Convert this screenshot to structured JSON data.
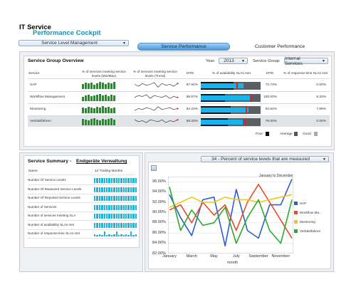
{
  "header": {
    "title_line1": "IT Service",
    "title_line2": "Performance Cockpit"
  },
  "nav_combo": {
    "value": "Service Level Management"
  },
  "tabs": [
    {
      "label": "Service Performance",
      "active": true
    },
    {
      "label": "Customer Performance",
      "active": false
    }
  ],
  "overview": {
    "title": "Service Group Overview",
    "year_label": "Year:",
    "year_value": "2013",
    "group_label": "Service Group:",
    "group_value": "Internal Services",
    "headers": {
      "service": "Service",
      "pct_min_max": "% of services meeting service levels (Min/Max)",
      "pct_trend": "% of services meeting service levels (Trend)",
      "mtd1": "MTD",
      "avail": "% of availability SLAs met",
      "mtd2": "MTD",
      "resp": "% of response-time SLAs met"
    },
    "rows": [
      {
        "name": "SAP",
        "mtd": "87.94%",
        "avail_mtd": "72.73%",
        "resp": "0.00%",
        "fill": 0.72,
        "band": 0.55,
        "mark": 0.6,
        "bars": [
          7,
          9,
          8,
          9,
          6,
          8,
          10,
          9,
          7,
          9,
          8,
          10
        ],
        "trend": [
          5,
          3,
          6,
          4,
          5,
          7,
          2,
          6,
          4,
          5,
          3,
          6
        ]
      },
      {
        "name": "Workflow Management",
        "mtd": "86.67%",
        "avail_mtd": "100.00%",
        "resp": "8.33%",
        "fill": 0.85,
        "band": 0.4,
        "mark": 0.82,
        "bars": [
          6,
          8,
          9,
          7,
          8,
          9,
          10,
          8,
          9,
          7,
          9,
          8
        ],
        "trend": [
          4,
          6,
          5,
          7,
          3,
          6,
          5,
          4,
          6,
          3,
          5,
          4
        ]
      },
      {
        "name": "Monitoring",
        "mtd": "84.23%",
        "avail_mtd": "84.52%",
        "resp": "7.69%",
        "fill": 0.8,
        "band": 0.5,
        "mark": 0.75,
        "bars": [
          8,
          7,
          9,
          8,
          7,
          9,
          8,
          10,
          8,
          9,
          7,
          8
        ],
        "trend": [
          3,
          5,
          4,
          6,
          5,
          3,
          7,
          4,
          5,
          6,
          4,
          5
        ]
      },
      {
        "name": "Verbdelfahren",
        "mtd": "58.33%",
        "avail_mtd": "75.00%",
        "resp": "0.00%",
        "fill": 0.7,
        "band": 0.45,
        "mark": 0.73,
        "bars": [
          9,
          8,
          7,
          9,
          10,
          8,
          7,
          9,
          8,
          9,
          10,
          8
        ],
        "trend": [
          6,
          4,
          5,
          3,
          6,
          5,
          4,
          6,
          3,
          5,
          4,
          6
        ]
      }
    ],
    "legend": [
      {
        "label": "Poor",
        "color": "#111111"
      },
      {
        "label": "Average",
        "color": "#555555"
      },
      {
        "label": "Good",
        "color": "#aaaaaa"
      }
    ]
  },
  "summary": {
    "title": "Service Summary - ",
    "link": "Endgeräte Verwaltung",
    "col_name": "Name",
    "col_trail": "12 Trailing Months",
    "rows": [
      {
        "label": "Number Of Service Levels",
        "bars": [
          7,
          7,
          7,
          7,
          7,
          7,
          7,
          7,
          7,
          7,
          7,
          7,
          7,
          7,
          7,
          7,
          7,
          7
        ]
      },
      {
        "label": "Number Of Measured Service Levels",
        "bars": [
          7,
          7,
          7,
          7,
          7,
          7,
          7,
          7,
          7,
          7,
          7,
          7,
          7,
          7,
          7,
          7,
          7,
          7
        ]
      },
      {
        "label": "Number Of Reported Service Levels",
        "bars": [
          7,
          7,
          7,
          7,
          7,
          7,
          7,
          7,
          7,
          7,
          7,
          7,
          7,
          7,
          7,
          7,
          7,
          7
        ]
      },
      {
        "label": "Number of Services",
        "bars": [
          7,
          7,
          7,
          7,
          7,
          7,
          7,
          7,
          7,
          7,
          7,
          7,
          7,
          7,
          7,
          7,
          7,
          7
        ]
      },
      {
        "label": "Number of services meeting SLA",
        "bars": [
          7,
          7,
          7,
          7,
          7,
          7,
          7,
          7,
          7,
          7,
          7,
          7,
          7,
          7,
          7,
          7,
          7,
          7
        ]
      },
      {
        "label": "Number of availability SLAs met",
        "bars": [
          7,
          7,
          7,
          7,
          7,
          7,
          7,
          7,
          7,
          7,
          7,
          7,
          7,
          7,
          7,
          7,
          7,
          7
        ]
      },
      {
        "label": "Number of response-time SLAs met",
        "bars": [
          3,
          2,
          3,
          2,
          7,
          2,
          3,
          2,
          3,
          7,
          2,
          3,
          2,
          3,
          2,
          7,
          2,
          3
        ]
      }
    ]
  },
  "chart_combo": {
    "value": "34 - Percent of service levels that are measured"
  },
  "chart_data": {
    "type": "line",
    "title": "January to December",
    "xlabel": "month",
    "x": [
      "January",
      "February",
      "March",
      "April",
      "May",
      "June",
      "July",
      "August",
      "September",
      "October",
      "November",
      "December"
    ],
    "x_tick_labels": [
      "January",
      "March",
      "May",
      "July",
      "September",
      "November"
    ],
    "ylim": [
      82,
      97
    ],
    "y_ticks": [
      "96.00%",
      "94.00%",
      "92.00%",
      "90.00%",
      "88.00%",
      "86.00%",
      "84.00%",
      "82.00%"
    ],
    "grid": true,
    "legend_position": "right",
    "series": [
      {
        "name": "SAP",
        "color": "#2b5fd0",
        "values": [
          93.5,
          89.0,
          85.5,
          92.5,
          93.0,
          83.5,
          94.5,
          86.5,
          85.0,
          91.5,
          91.5,
          96.5
        ]
      },
      {
        "name": "Workflow Ma...",
        "color": "#e64c2c",
        "values": [
          90.5,
          91.5,
          88.0,
          92.0,
          89.5,
          91.5,
          86.5,
          92.0,
          95.5,
          92.0,
          88.5,
          85.0
        ]
      },
      {
        "name": "Monitoring",
        "color": "#f4c517",
        "values": [
          91.0,
          92.0,
          93.0,
          92.0,
          92.0,
          93.0,
          92.5,
          92.5,
          92.0,
          92.5,
          93.0,
          93.5
        ]
      },
      {
        "name": "Verbdelfahren",
        "color": "#2daa2d",
        "values": [
          95.0,
          86.5,
          90.5,
          87.5,
          88.0,
          91.0,
          84.0,
          89.0,
          92.5,
          86.5,
          84.0,
          92.5
        ]
      }
    ]
  }
}
